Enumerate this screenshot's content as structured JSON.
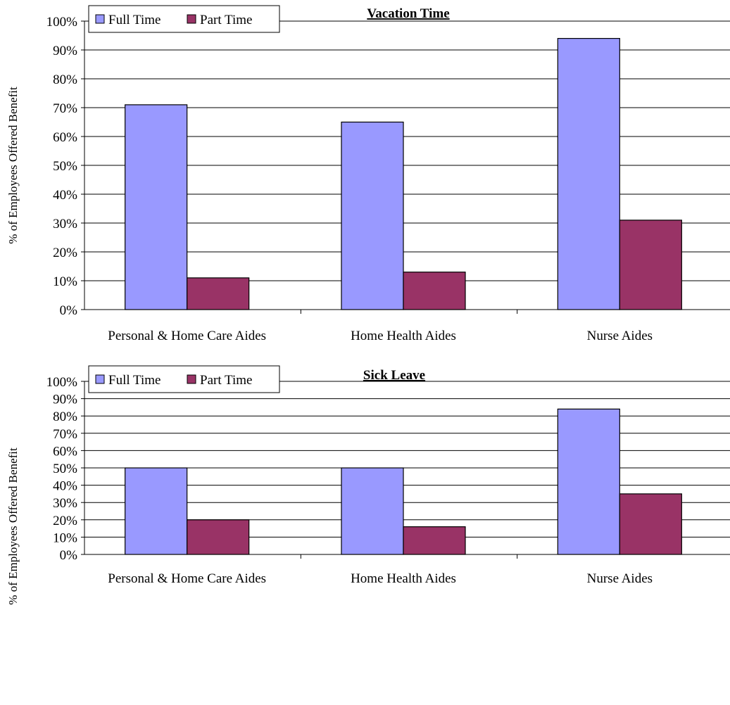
{
  "chart_data": [
    {
      "type": "bar",
      "title": "Vacation Time",
      "ylabel": "% of Employees Offered Benefit",
      "xlabel": "",
      "categories": [
        "Personal & Home Care Aides",
        "Home Health Aides",
        "Nurse Aides"
      ],
      "series": [
        {
          "name": "Full Time",
          "values": [
            71,
            65,
            94
          ]
        },
        {
          "name": "Part Time",
          "values": [
            11,
            13,
            31
          ]
        }
      ],
      "ylim": [
        0,
        100
      ],
      "yticks": [
        "0%",
        "10%",
        "20%",
        "30%",
        "40%",
        "50%",
        "60%",
        "70%",
        "80%",
        "90%",
        "100%"
      ],
      "grid": true,
      "legend_position": "top-left"
    },
    {
      "type": "bar",
      "title": "Sick Leave",
      "ylabel": "% of Employees Offered Benefit",
      "xlabel": "",
      "categories": [
        "Personal & Home Care Aides",
        "Home Health Aides",
        "Nurse Aides"
      ],
      "series": [
        {
          "name": "Full Time",
          "values": [
            50,
            50,
            84
          ]
        },
        {
          "name": "Part Time",
          "values": [
            20,
            16,
            35
          ]
        }
      ],
      "ylim": [
        0,
        100
      ],
      "yticks": [
        "0%",
        "10%",
        "20%",
        "30%",
        "40%",
        "50%",
        "60%",
        "70%",
        "80%",
        "90%",
        "100%"
      ],
      "grid": true,
      "legend_position": "top-left"
    }
  ],
  "colors": {
    "full_time": "#9999ff",
    "part_time": "#993366",
    "grid": "#000000"
  }
}
